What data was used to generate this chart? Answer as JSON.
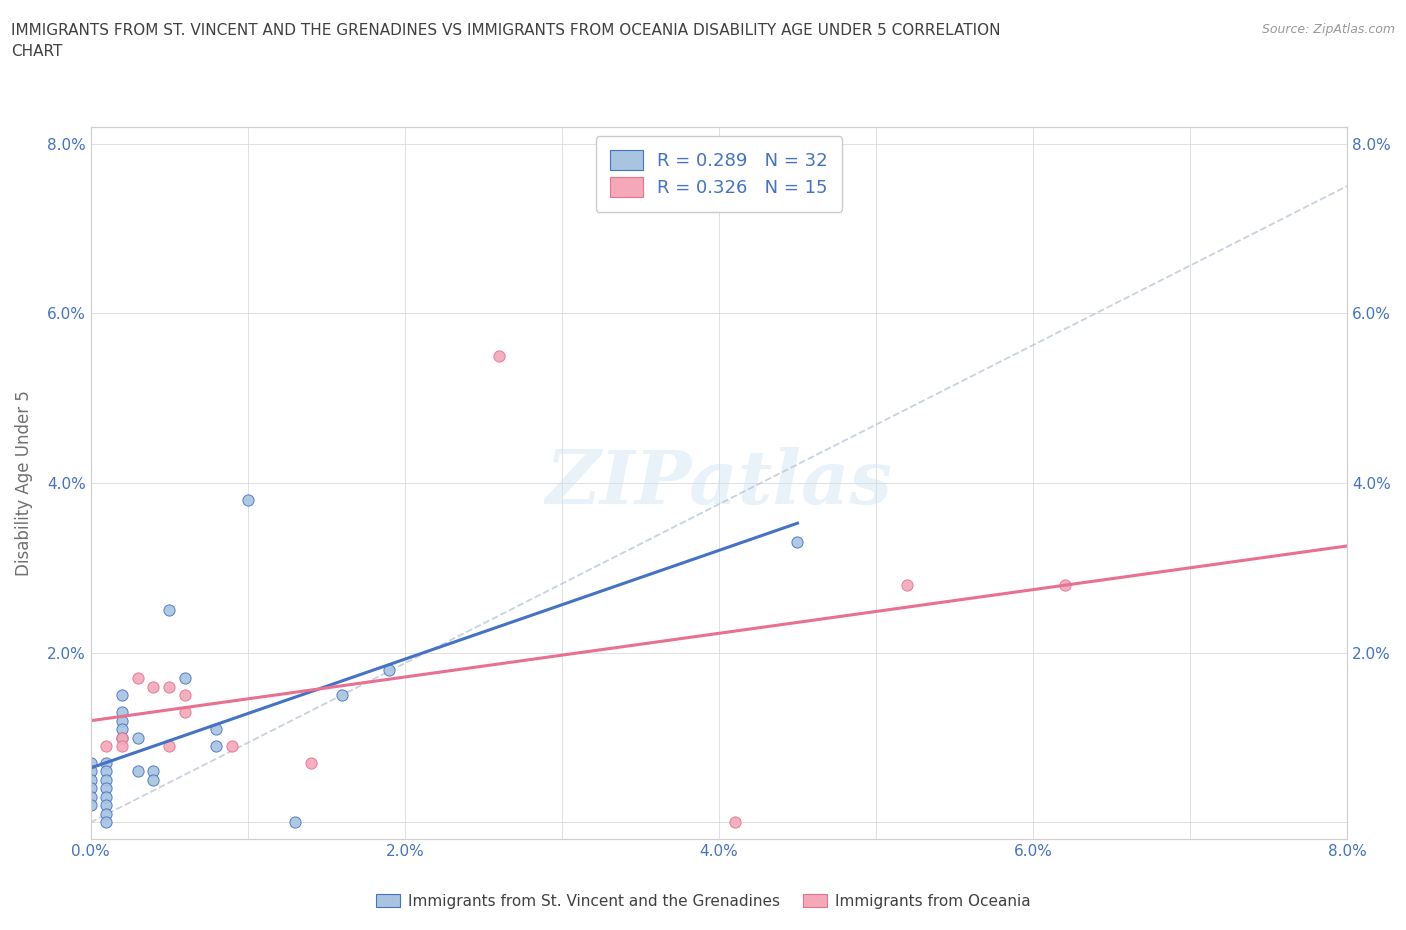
{
  "title": "IMMIGRANTS FROM ST. VINCENT AND THE GRENADINES VS IMMIGRANTS FROM OCEANIA DISABILITY AGE UNDER 5 CORRELATION\nCHART",
  "source": "Source: ZipAtlas.com",
  "xlabel": "",
  "ylabel": "Disability Age Under 5",
  "xlim": [
    0.0,
    0.08
  ],
  "ylim": [
    -0.002,
    0.082
  ],
  "xticks": [
    0.0,
    0.01,
    0.02,
    0.03,
    0.04,
    0.05,
    0.06,
    0.07,
    0.08
  ],
  "xtick_labels": [
    "0.0%",
    "",
    "2.0%",
    "",
    "4.0%",
    "",
    "6.0%",
    "",
    "8.0%"
  ],
  "yticks": [
    0.0,
    0.02,
    0.04,
    0.06,
    0.08
  ],
  "ytick_labels": [
    "",
    "2.0%",
    "4.0%",
    "6.0%",
    "8.0%"
  ],
  "blue_scatter": [
    [
      0.0,
      0.007
    ],
    [
      0.0,
      0.006
    ],
    [
      0.0,
      0.005
    ],
    [
      0.0,
      0.004
    ],
    [
      0.0,
      0.003
    ],
    [
      0.0,
      0.002
    ],
    [
      0.001,
      0.007
    ],
    [
      0.001,
      0.006
    ],
    [
      0.001,
      0.005
    ],
    [
      0.001,
      0.004
    ],
    [
      0.001,
      0.003
    ],
    [
      0.001,
      0.002
    ],
    [
      0.001,
      0.001
    ],
    [
      0.001,
      0.0
    ],
    [
      0.002,
      0.015
    ],
    [
      0.002,
      0.013
    ],
    [
      0.002,
      0.012
    ],
    [
      0.002,
      0.011
    ],
    [
      0.002,
      0.01
    ],
    [
      0.003,
      0.01
    ],
    [
      0.003,
      0.006
    ],
    [
      0.004,
      0.006
    ],
    [
      0.004,
      0.005
    ],
    [
      0.005,
      0.025
    ],
    [
      0.006,
      0.017
    ],
    [
      0.008,
      0.011
    ],
    [
      0.008,
      0.009
    ],
    [
      0.01,
      0.038
    ],
    [
      0.013,
      0.0
    ],
    [
      0.016,
      0.015
    ],
    [
      0.019,
      0.018
    ],
    [
      0.045,
      0.033
    ]
  ],
  "pink_scatter": [
    [
      0.001,
      0.009
    ],
    [
      0.002,
      0.01
    ],
    [
      0.002,
      0.009
    ],
    [
      0.003,
      0.017
    ],
    [
      0.004,
      0.016
    ],
    [
      0.005,
      0.016
    ],
    [
      0.005,
      0.009
    ],
    [
      0.006,
      0.015
    ],
    [
      0.006,
      0.013
    ],
    [
      0.009,
      0.009
    ],
    [
      0.014,
      0.007
    ],
    [
      0.026,
      0.055
    ],
    [
      0.041,
      0.0
    ],
    [
      0.052,
      0.028
    ],
    [
      0.062,
      0.028
    ]
  ],
  "blue_R": 0.289,
  "blue_N": 32,
  "pink_R": 0.326,
  "pink_N": 15,
  "blue_color": "#a8c4e0",
  "pink_color": "#f4a8b8",
  "blue_line_color": "#4472c4",
  "pink_line_color": "#e87090",
  "title_color": "#404040",
  "axis_label_color": "#707070",
  "tick_color": "#4472c4",
  "legend_text_color": "#4472c4"
}
